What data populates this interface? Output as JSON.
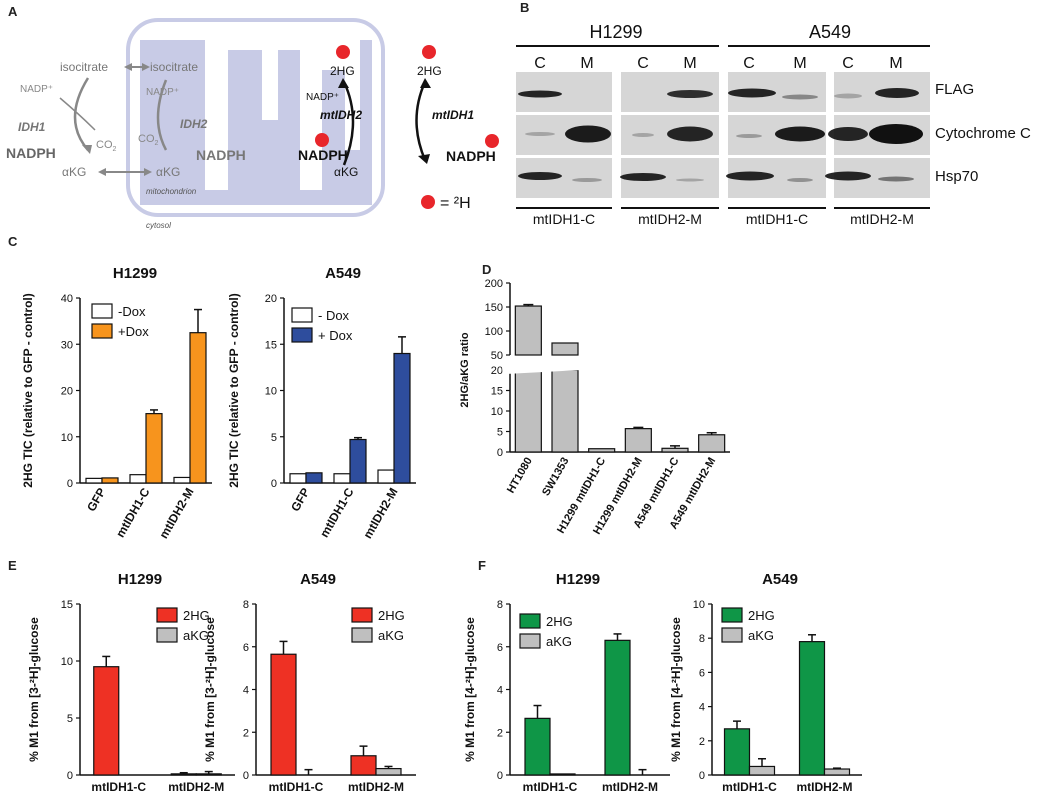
{
  "colors": {
    "orange": "#f7941d",
    "blue": "#2e4d9d",
    "red": "#ee3124",
    "green": "#0f9647",
    "gray": "#bfbfbf",
    "mito": "#c8cbe6",
    "deuterium": "#e8262b"
  },
  "panel_a": {
    "letter": "A",
    "isocitrate_cyto": "isocitrate",
    "isocitrate_mito": "isocitrate",
    "nadp_1": "NADP⁺",
    "nadp_2": "NADP⁺",
    "nadp_3": "NADP⁺",
    "idh1": "IDH1",
    "idh2": "IDH2",
    "co2_1": "CO",
    "co2_2": "CO",
    "sub2": "2",
    "nadph_1": "NADPH",
    "nadph_2": "NADPH",
    "nadph_3": "NADPH",
    "nadph_4": "NADPH",
    "akg_1": "αKG",
    "akg_2": "αKG",
    "akg_3": "αKG",
    "twohg_1": "2HG",
    "twohg_2": "2HG",
    "mtidh2": "mtIDH2",
    "mtidh1": "mtIDH1",
    "mitochondrion": "mitochondrion",
    "cytosol": "cytosol",
    "legend_eq": "= ²H"
  },
  "panel_b": {
    "letter": "B",
    "cell_lines": [
      "H1299",
      "A549"
    ],
    "lanes": [
      "C",
      "M",
      "C",
      "M",
      "C",
      "M",
      "C",
      "M"
    ],
    "antibodies": [
      "FLAG",
      "Cytochrome C",
      "Hsp70"
    ],
    "constructs": [
      "mtIDH1-C",
      "mtIDH2-M",
      "mtIDH1-C",
      "mtIDH2-M"
    ]
  },
  "chart_data": [
    {
      "panel": "C",
      "type": "bar",
      "title": "H1299",
      "ylabel": "2HG TIC (relative to GFP - control)",
      "categories": [
        "GFP",
        "mtIDH1-C",
        "mtIDH2-M"
      ],
      "ylim": [
        0,
        40
      ],
      "yticks": [
        0,
        10,
        20,
        30,
        40
      ],
      "series": [
        {
          "name": "-Dox",
          "values": [
            1.0,
            1.8,
            1.2
          ],
          "errors": [
            0,
            0,
            0
          ],
          "color": "#ffffff"
        },
        {
          "name": "+Dox",
          "values": [
            1.1,
            15.0,
            32.5
          ],
          "errors": [
            0,
            0.8,
            5.0
          ],
          "color": "#f7941d"
        }
      ],
      "legend": "top-left"
    },
    {
      "panel": "C",
      "type": "bar",
      "title": "A549",
      "ylabel": "2HG TIC (relative to GFP - control)",
      "categories": [
        "GFP",
        "mtIDH1-C",
        "mtIDH2-M"
      ],
      "ylim": [
        0,
        20
      ],
      "yticks": [
        0,
        5,
        10,
        15,
        20
      ],
      "series": [
        {
          "name": "- Dox",
          "values": [
            1.0,
            1.0,
            1.4
          ],
          "errors": [
            0,
            0,
            0
          ],
          "color": "#ffffff"
        },
        {
          "name": "+ Dox",
          "values": [
            1.1,
            4.7,
            14.0
          ],
          "errors": [
            0,
            0.2,
            1.8
          ],
          "color": "#2e4d9d"
        }
      ],
      "legend": "top-left"
    },
    {
      "panel": "D",
      "type": "bar",
      "ylabel": "2HG/aKG ratio",
      "categories": [
        "HT1080",
        "SW1353",
        "H1299 mtIDH1-C",
        "H1299 mtIDH2-M",
        "A549 mtIDH1-C",
        "A549 mtIDH2-M"
      ],
      "series": [
        {
          "values": [
            152,
            75,
            0.8,
            5.7,
            0.9,
            4.2
          ],
          "errors": [
            3,
            0,
            0,
            0.3,
            0.6,
            0.5
          ],
          "color": "#bfbfbf"
        }
      ],
      "axis_break": [
        20,
        50
      ],
      "yticks_lower": [
        0,
        5,
        10,
        15,
        20
      ],
      "yticks_upper": [
        50,
        100,
        150,
        200
      ],
      "ylim_lower": [
        0,
        20
      ],
      "ylim_upper": [
        50,
        200
      ]
    },
    {
      "panel": "E",
      "type": "bar",
      "title": "H1299",
      "ylabel": "% M1 from [3-²H]-glucose",
      "categories": [
        "mtIDH1-C",
        "mtIDH2-M"
      ],
      "ylim": [
        0,
        15
      ],
      "yticks": [
        0,
        5,
        10,
        15
      ],
      "series": [
        {
          "name": "2HG",
          "values": [
            9.5,
            0.1
          ],
          "errors": [
            0.9,
            0.1
          ],
          "color": "#ee3124"
        },
        {
          "name": "aKG",
          "values": [
            0.0,
            0.1
          ],
          "errors": [
            0.0,
            0.2
          ],
          "color": "#bfbfbf"
        }
      ],
      "legend": "top-right"
    },
    {
      "panel": "E",
      "type": "bar",
      "title": "A549",
      "ylabel": "% M1 from [3-²H]-glucose",
      "categories": [
        "mtIDH1-C",
        "mtIDH2-M"
      ],
      "ylim": [
        0,
        8
      ],
      "yticks": [
        0,
        2,
        4,
        6,
        8
      ],
      "series": [
        {
          "name": "2HG",
          "values": [
            5.65,
            0.9
          ],
          "errors": [
            0.6,
            0.45
          ],
          "color": "#ee3124"
        },
        {
          "name": "aKG",
          "values": [
            0.0,
            0.3
          ],
          "errors": [
            0.25,
            0.1
          ],
          "color": "#bfbfbf"
        }
      ],
      "legend": "top-right"
    },
    {
      "panel": "F",
      "type": "bar",
      "title": "H1299",
      "ylabel": "% M1 from [4-²H]-glucose",
      "categories": [
        "mtIDH1-C",
        "mtIDH2-M"
      ],
      "ylim": [
        0,
        8
      ],
      "yticks": [
        0,
        2,
        4,
        6,
        8
      ],
      "series": [
        {
          "name": "2HG",
          "values": [
            2.65,
            6.3
          ],
          "errors": [
            0.6,
            0.3
          ],
          "color": "#0f9647"
        },
        {
          "name": "aKG",
          "values": [
            0.05,
            0.0
          ],
          "errors": [
            0.0,
            0.25
          ],
          "color": "#bfbfbf"
        }
      ],
      "legend": "top-left"
    },
    {
      "panel": "F",
      "type": "bar",
      "title": "A549",
      "ylabel": "% M1 from [4-²H]-glucose",
      "categories": [
        "mtIDH1-C",
        "mtIDH2-M"
      ],
      "ylim": [
        0,
        10
      ],
      "yticks": [
        0,
        2,
        4,
        6,
        8,
        10
      ],
      "series": [
        {
          "name": "2HG",
          "values": [
            2.7,
            7.8
          ],
          "errors": [
            0.45,
            0.4
          ],
          "color": "#0f9647"
        },
        {
          "name": "aKG",
          "values": [
            0.5,
            0.35
          ],
          "errors": [
            0.45,
            0.05
          ],
          "color": "#bfbfbf"
        }
      ],
      "legend": "top-left"
    }
  ]
}
